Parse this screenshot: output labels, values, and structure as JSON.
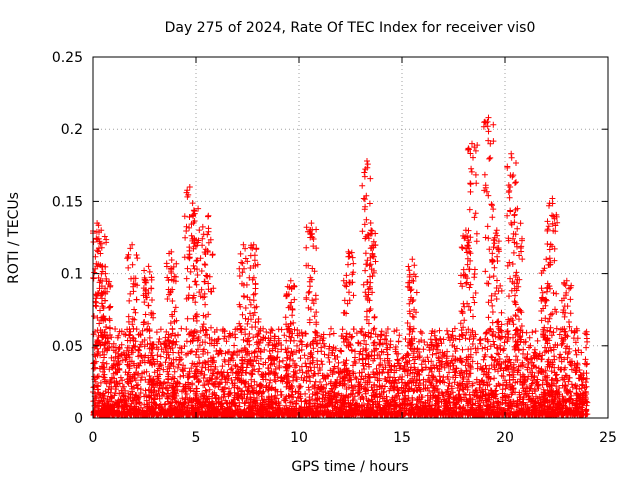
{
  "chart_data": {
    "type": "scatter",
    "title": "Day 275 of 2024, Rate Of TEC Index for receiver vis0",
    "xlabel": "GPS time / hours",
    "ylabel": "ROTI / TECUs",
    "xlim": [
      0,
      25
    ],
    "ylim": [
      0,
      0.25
    ],
    "xticks": [
      0,
      5,
      10,
      15,
      20,
      25
    ],
    "xtick_labels": [
      "0",
      "5",
      "10",
      "15",
      "20",
      "25"
    ],
    "yticks": [
      0,
      0.05,
      0.1,
      0.15,
      0.2,
      0.25
    ],
    "ytick_labels": [
      "0",
      "0.05",
      "0.1",
      "0.15",
      "0.2",
      "0.25"
    ],
    "grid": true,
    "marker": "+",
    "marker_color": "#ff0000",
    "series": [
      {
        "name": "ROTI",
        "description_only_for_generation": true,
        "x_range": [
          0,
          24
        ],
        "y_bulk_max": 0.06,
        "peaks": [
          {
            "x": 0.2,
            "y": 0.135
          },
          {
            "x": 0.4,
            "y": 0.13
          },
          {
            "x": 0.6,
            "y": 0.1
          },
          {
            "x": 1.9,
            "y": 0.12
          },
          {
            "x": 2.7,
            "y": 0.105
          },
          {
            "x": 3.8,
            "y": 0.115
          },
          {
            "x": 4.7,
            "y": 0.16
          },
          {
            "x": 5.1,
            "y": 0.145
          },
          {
            "x": 5.6,
            "y": 0.14
          },
          {
            "x": 7.3,
            "y": 0.12
          },
          {
            "x": 7.8,
            "y": 0.12
          },
          {
            "x": 9.6,
            "y": 0.095
          },
          {
            "x": 10.6,
            "y": 0.135
          },
          {
            "x": 12.4,
            "y": 0.115
          },
          {
            "x": 13.3,
            "y": 0.178
          },
          {
            "x": 13.5,
            "y": 0.13
          },
          {
            "x": 15.5,
            "y": 0.11
          },
          {
            "x": 18.1,
            "y": 0.13
          },
          {
            "x": 18.4,
            "y": 0.19
          },
          {
            "x": 19.2,
            "y": 0.208
          },
          {
            "x": 19.6,
            "y": 0.13
          },
          {
            "x": 20.3,
            "y": 0.183
          },
          {
            "x": 20.6,
            "y": 0.145
          },
          {
            "x": 22.0,
            "y": 0.11
          },
          {
            "x": 22.3,
            "y": 0.152
          },
          {
            "x": 23.0,
            "y": 0.095
          }
        ]
      }
    ]
  }
}
